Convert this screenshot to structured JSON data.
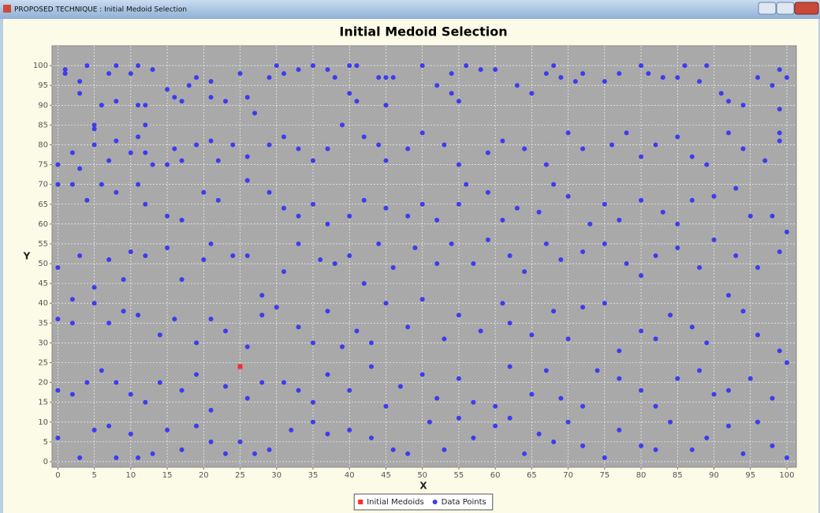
{
  "window_title": "PROPOSED TECHNIQUE : Initial Medoid Selection",
  "chart_data": {
    "type": "scatter",
    "title": "Initial Medoid Selection",
    "x_label": "X",
    "y_label": "Y",
    "xlim": [
      -0.8,
      101.3
    ],
    "ylim": [
      -1.4,
      105
    ],
    "xticks": [
      0,
      5,
      10,
      15,
      20,
      25,
      30,
      35,
      40,
      45,
      50,
      55,
      60,
      65,
      70,
      75,
      80,
      85,
      90,
      95,
      100
    ],
    "yticks": [
      0,
      5,
      10,
      15,
      20,
      25,
      30,
      35,
      40,
      45,
      50,
      55,
      60,
      65,
      70,
      75,
      80,
      85,
      90,
      95,
      100
    ],
    "grid": true,
    "legend": "bottom",
    "series": [
      {
        "name": "Initial Medoids",
        "color": "#ff2a2a",
        "marker": "square",
        "x": [
          25
        ],
        "values": [
          24
        ]
      },
      {
        "name": "Data Points",
        "color": "#3c3cf0",
        "marker": "circle",
        "x": [
          1,
          1,
          3,
          3,
          4,
          5,
          5,
          6,
          7,
          8,
          8,
          10,
          11,
          11,
          12,
          13,
          12,
          11,
          15,
          16,
          17,
          18,
          19,
          21,
          21,
          23,
          25,
          26,
          27,
          29,
          30,
          31,
          33,
          35,
          37,
          38,
          40,
          41,
          40,
          41,
          44,
          45,
          46,
          45,
          50,
          52,
          54,
          54,
          55,
          56,
          58,
          60,
          63,
          65,
          67,
          68,
          69,
          71,
          72,
          75,
          77,
          80,
          81,
          83,
          85,
          86,
          88,
          89,
          91,
          92,
          94,
          96,
          98,
          99,
          100,
          99,
          99,
          2,
          0,
          3,
          5,
          7,
          8,
          10,
          12,
          13,
          15,
          16,
          17,
          19,
          21,
          22,
          24,
          26,
          29,
          31,
          33,
          35,
          37,
          39,
          42,
          44,
          45,
          48,
          50,
          53,
          55,
          59,
          61,
          64,
          67,
          70,
          72,
          76,
          78,
          80,
          82,
          85,
          87,
          89,
          92,
          94,
          97,
          99,
          0,
          2,
          4,
          6,
          8,
          11,
          12,
          15,
          17,
          20,
          22,
          26,
          29,
          31,
          33,
          35,
          37,
          40,
          42,
          45,
          48,
          50,
          52,
          55,
          56,
          59,
          61,
          63,
          66,
          68,
          70,
          73,
          75,
          77,
          80,
          83,
          85,
          87,
          90,
          93,
          95,
          98,
          100,
          0,
          2,
          3,
          5,
          7,
          9,
          10,
          12,
          15,
          17,
          20,
          21,
          24,
          26,
          28,
          31,
          33,
          36,
          38,
          40,
          42,
          44,
          46,
          49,
          52,
          54,
          57,
          59,
          62,
          64,
          67,
          69,
          72,
          75,
          78,
          80,
          82,
          85,
          88,
          90,
          93,
          96,
          99,
          0,
          2,
          5,
          7,
          9,
          11,
          14,
          16,
          19,
          21,
          23,
          26,
          28,
          30,
          33,
          35,
          37,
          39,
          41,
          43,
          45,
          48,
          50,
          53,
          55,
          58,
          61,
          62,
          65,
          68,
          70,
          72,
          75,
          77,
          80,
          82,
          84,
          87,
          89,
          92,
          94,
          96,
          99,
          0,
          2,
          4,
          6,
          8,
          10,
          12,
          14,
          17,
          19,
          21,
          23,
          26,
          28,
          31,
          33,
          35,
          37,
          40,
          43,
          45,
          47,
          50,
          52,
          55,
          57,
          60,
          62,
          65,
          67,
          69,
          72,
          74,
          77,
          80,
          82,
          85,
          88,
          90,
          92,
          95,
          98,
          100,
          0,
          3,
          5,
          7,
          8,
          10,
          11,
          13,
          15,
          17,
          19,
          21,
          23,
          25,
          27,
          29,
          32,
          35,
          37,
          40,
          43,
          46,
          48,
          51,
          53,
          55,
          57,
          60,
          62,
          64,
          66,
          68,
          70,
          72,
          75,
          77,
          80,
          82,
          84,
          87,
          89,
          92,
          94,
          96,
          98,
          100
        ],
        "values": [
          99,
          98,
          96,
          93,
          100,
          85,
          84,
          90,
          98,
          100,
          91,
          98,
          100,
          90,
          90,
          99,
          85,
          82,
          94,
          92,
          91,
          95,
          97,
          96,
          92,
          91,
          98,
          92,
          88,
          97,
          100,
          98,
          99,
          100,
          99,
          97,
          100,
          100,
          93,
          91,
          97,
          97,
          97,
          90,
          100,
          95,
          98,
          93,
          91,
          100,
          99,
          99,
          95,
          93,
          98,
          100,
          97,
          96,
          98,
          96,
          98,
          100,
          98,
          97,
          97,
          100,
          96,
          100,
          93,
          91,
          90,
          97,
          95,
          99,
          97,
          89,
          83,
          78,
          75,
          74,
          80,
          76,
          81,
          78,
          78,
          75,
          75,
          79,
          76,
          80,
          81,
          76,
          80,
          77,
          80,
          82,
          79,
          76,
          79,
          85,
          82,
          80,
          76,
          79,
          83,
          80,
          75,
          78,
          81,
          79,
          75,
          83,
          79,
          80,
          83,
          77,
          80,
          82,
          77,
          75,
          83,
          79,
          76,
          81,
          70,
          70,
          66,
          70,
          68,
          70,
          65,
          62,
          61,
          68,
          66,
          71,
          68,
          64,
          62,
          65,
          60,
          62,
          66,
          64,
          62,
          65,
          61,
          65,
          70,
          68,
          61,
          64,
          63,
          70,
          67,
          60,
          65,
          61,
          66,
          63,
          60,
          66,
          67,
          69,
          62,
          62,
          58,
          49,
          41,
          52,
          44,
          51,
          46,
          53,
          52,
          54,
          46,
          51,
          55,
          52,
          52,
          42,
          48,
          55,
          51,
          50,
          52,
          45,
          55,
          49,
          54,
          50,
          55,
          50,
          56,
          52,
          48,
          55,
          51,
          53,
          55,
          50,
          47,
          52,
          54,
          49,
          56,
          52,
          49,
          53,
          36,
          35,
          40,
          35,
          38,
          37,
          32,
          36,
          30,
          36,
          33,
          29,
          37,
          39,
          34,
          30,
          38,
          29,
          33,
          30,
          40,
          34,
          41,
          31,
          37,
          33,
          40,
          35,
          32,
          38,
          31,
          39,
          40,
          28,
          33,
          31,
          37,
          34,
          30,
          42,
          38,
          32,
          28,
          18,
          17,
          20,
          23,
          20,
          17,
          15,
          20,
          18,
          22,
          13,
          19,
          16,
          20,
          20,
          18,
          15,
          22,
          18,
          24,
          14,
          19,
          22,
          16,
          21,
          15,
          14,
          24,
          17,
          23,
          16,
          14,
          23,
          21,
          18,
          14,
          21,
          23,
          17,
          18,
          21,
          16,
          25,
          6,
          1,
          8,
          9,
          1,
          7,
          1,
          2,
          8,
          3,
          9,
          5,
          2,
          5,
          2,
          3,
          8,
          10,
          7,
          8,
          6,
          3,
          2,
          10,
          3,
          11,
          6,
          9,
          11,
          2,
          7,
          5,
          10,
          4,
          1,
          8,
          4,
          3,
          10,
          3,
          6,
          9,
          2,
          10,
          4,
          1
        ]
      }
    ]
  }
}
